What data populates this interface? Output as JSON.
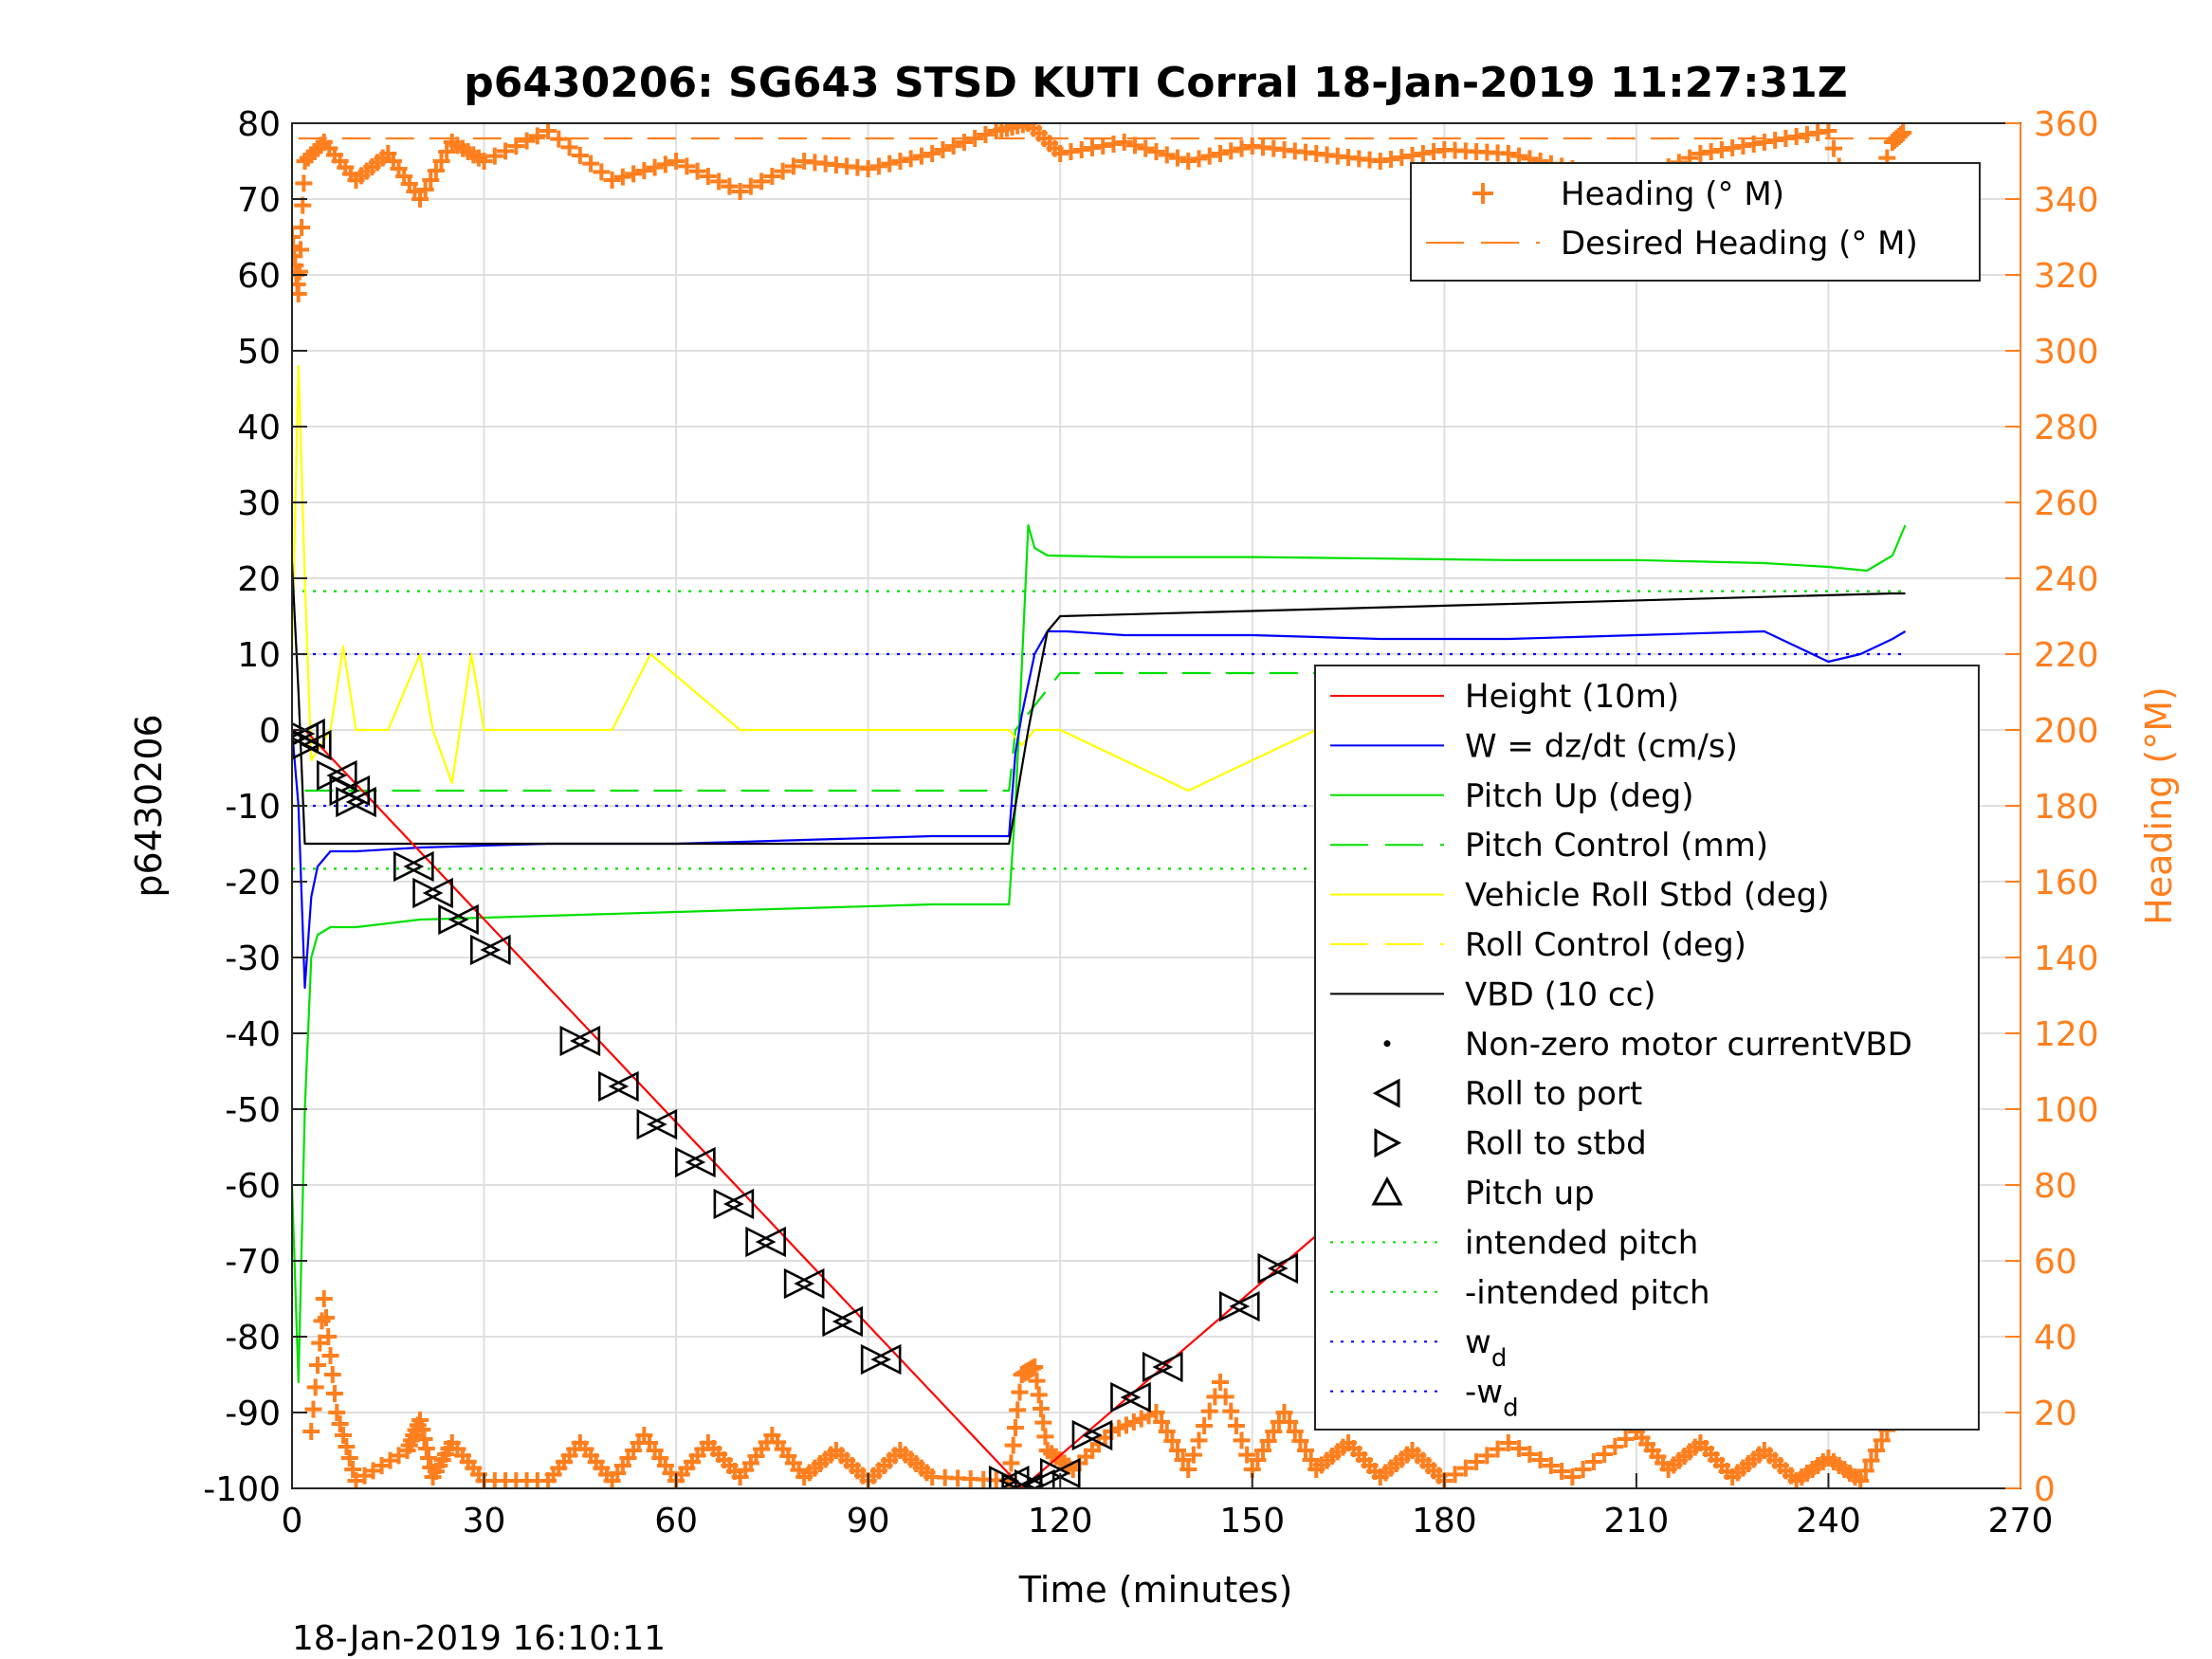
{
  "chart_data": {
    "type": "line",
    "title": "p6430206: SG643 STSD KUTI Corral 18-Jan-2019 11:27:31Z",
    "xlabel": "Time (minutes)",
    "ylabel": "p6430206",
    "ylabel_right": "Heading (°M)",
    "timestamp": "18-Jan-2019 16:10:11",
    "xlim": [
      0,
      270
    ],
    "ylim": [
      -100,
      80
    ],
    "ylim_right": [
      0,
      360
    ],
    "x_ticks": [
      "0",
      "30",
      "60",
      "90",
      "120",
      "150",
      "180",
      "210",
      "240",
      "270"
    ],
    "y_ticks": [
      "-100",
      "-90",
      "-80",
      "-70",
      "-60",
      "-50",
      "-40",
      "-30",
      "-20",
      "-10",
      "0",
      "10",
      "20",
      "30",
      "40",
      "50",
      "60",
      "70",
      "80"
    ],
    "y_ticks_right": [
      "0",
      "20",
      "40",
      "60",
      "80",
      "100",
      "120",
      "140",
      "160",
      "180",
      "200",
      "220",
      "240",
      "260",
      "280",
      "300",
      "320",
      "340",
      "360"
    ],
    "grid": true,
    "legend_top": {
      "placement": "top-right",
      "entries": [
        {
          "label": "Heading (° M)",
          "color": "#ff7f1e",
          "style": "plus"
        },
        {
          "label": "Desired Heading (° M)",
          "color": "#ff7f1e",
          "style": "dashed"
        }
      ]
    },
    "legend_main": {
      "placement": "right",
      "entries": [
        {
          "label": "Height (10m)",
          "color": "#ff0000",
          "style": "solid"
        },
        {
          "label": "W = dz/dt (cm/s)",
          "color": "#0000ff",
          "style": "solid"
        },
        {
          "label": "Pitch Up (deg)",
          "color": "#00e000",
          "style": "solid"
        },
        {
          "label": "Pitch Control (mm)",
          "color": "#00e000",
          "style": "dashed"
        },
        {
          "label": "Vehicle Roll Stbd (deg)",
          "color": "#ffff00",
          "style": "solid"
        },
        {
          "label": "Roll Control (deg)",
          "color": "#ffff00",
          "style": "dashed"
        },
        {
          "label": "VBD (10 cc)",
          "color": "#000000",
          "style": "solid"
        },
        {
          "label": "Non-zero motor currentVBD",
          "color": "#000000",
          "style": "dot"
        },
        {
          "label": "Roll to port",
          "color": "#000000",
          "style": "tri-left"
        },
        {
          "label": "Roll to stbd",
          "color": "#000000",
          "style": "tri-right"
        },
        {
          "label": "Pitch up",
          "color": "#000000",
          "style": "tri-up"
        },
        {
          "label": "intended pitch",
          "color": "#00e000",
          "style": "dotted"
        },
        {
          "label": "-intended pitch",
          "color": "#00e000",
          "style": "dotted"
        },
        {
          "label": "w",
          "sub": "d",
          "color": "#0000ff",
          "style": "dotted"
        },
        {
          "label": "-w",
          "sub": "d",
          "color": "#0000ff",
          "style": "dotted"
        }
      ]
    },
    "series": [
      {
        "name": "Height (10m)",
        "axis": "left",
        "color": "#ff0000",
        "x": [
          0,
          2,
          113,
          114,
          252
        ],
        "y": [
          0,
          0,
          -99,
          -100,
          0
        ]
      },
      {
        "name": "W = dz/dt (cm/s)",
        "axis": "left",
        "color": "#0000ff",
        "x": [
          0,
          1,
          2,
          3,
          4,
          6,
          10,
          20,
          40,
          60,
          80,
          100,
          112,
          113,
          114,
          116,
          118,
          121,
          130,
          150,
          170,
          190,
          210,
          230,
          235,
          240,
          245,
          250,
          252
        ],
        "y": [
          0,
          -10,
          -34,
          -22,
          -18,
          -16,
          -16,
          -15.5,
          -15,
          -15,
          -14.5,
          -14,
          -14,
          -3,
          2,
          10,
          13,
          13,
          12.5,
          12.5,
          12,
          12,
          12.5,
          13,
          11,
          9,
          10,
          12,
          13
        ]
      },
      {
        "name": "Pitch Up (deg)",
        "axis": "left",
        "color": "#00e000",
        "x": [
          0,
          1,
          2,
          3,
          4,
          6,
          10,
          20,
          40,
          60,
          80,
          100,
          112,
          113,
          115,
          116,
          118,
          130,
          150,
          170,
          190,
          210,
          230,
          240,
          246,
          250,
          252
        ],
        "y": [
          -60,
          -86,
          -50,
          -30,
          -27,
          -26,
          -26,
          -25,
          -24.5,
          -24,
          -23.5,
          -23,
          -23,
          -10,
          27,
          24,
          23,
          22.8,
          22.8,
          22.6,
          22.4,
          22.4,
          22,
          21.5,
          21,
          23,
          27
        ]
      },
      {
        "name": "Pitch Control (mm)",
        "axis": "left",
        "color": "#00e000",
        "dash": true,
        "x": [
          2,
          112,
          113,
          120,
          252
        ],
        "y": [
          -8,
          -8,
          0,
          7.5,
          7.5
        ]
      },
      {
        "name": "Vehicle Roll Stbd (deg)",
        "axis": "left",
        "color": "#ffff00",
        "x": [
          0,
          1,
          2,
          3,
          6,
          8,
          10,
          15,
          20,
          22,
          25,
          28,
          30,
          50,
          56,
          70,
          90,
          112,
          114,
          116,
          120,
          140,
          160,
          180,
          200,
          220,
          240,
          250,
          252
        ],
        "y": [
          10,
          48,
          20,
          -4,
          0,
          11,
          0,
          0,
          10,
          0,
          -7,
          10,
          0,
          0,
          10,
          0,
          0,
          0,
          -2,
          0,
          0,
          -8,
          0,
          0,
          0,
          0,
          0,
          -8,
          -14
        ]
      },
      {
        "name": "VBD (10 cc)",
        "axis": "left",
        "color": "#000000",
        "x": [
          0,
          1,
          2,
          100,
          112,
          113,
          114,
          115,
          118,
          120,
          250,
          252
        ],
        "y": [
          22,
          5,
          -15,
          -15,
          -15,
          -10,
          -5,
          0,
          13,
          15,
          18,
          18
        ]
      },
      {
        "name": "Heading (° M)",
        "axis": "right",
        "color": "#ff7f1e",
        "marker": "plus",
        "x": [
          0,
          1,
          2,
          5,
          10,
          15,
          20,
          25,
          30,
          40,
          50,
          60,
          70,
          80,
          90,
          100,
          110,
          115,
          120,
          130,
          140,
          150,
          160,
          170,
          180,
          190,
          200,
          210,
          220,
          230,
          240,
          245,
          250,
          252
        ],
        "y": [
          330,
          315,
          350,
          355,
          345,
          352,
          340,
          355,
          350,
          358,
          345,
          350,
          342,
          350,
          348,
          352,
          358,
          360,
          352,
          355,
          350,
          354,
          352,
          350,
          353,
          352,
          348,
          345,
          352,
          355,
          358,
          330,
          355,
          358
        ]
      },
      {
        "name": "Heading (° M) low",
        "axis": "right",
        "color": "#ff7f1e",
        "marker": "plus",
        "x": [
          3,
          5,
          7,
          10,
          18,
          20,
          22,
          25,
          30,
          40,
          45,
          50,
          55,
          60,
          65,
          70,
          75,
          80,
          85,
          90,
          95,
          100,
          112,
          114,
          116,
          118,
          122,
          128,
          135,
          140,
          145,
          150,
          155,
          160,
          165,
          170,
          175,
          180,
          190,
          200,
          210,
          215,
          220,
          225,
          230,
          235,
          240,
          245,
          250
        ],
        "y": [
          15,
          50,
          20,
          2,
          10,
          18,
          3,
          12,
          2,
          2,
          12,
          2,
          14,
          2,
          12,
          3,
          14,
          3,
          10,
          2,
          10,
          3,
          2,
          30,
          32,
          10,
          5,
          15,
          20,
          5,
          28,
          5,
          20,
          5,
          12,
          3,
          10,
          2,
          12,
          3,
          15,
          5,
          12,
          3,
          10,
          2,
          8,
          2,
          18
        ]
      },
      {
        "name": "Desired Heading (° M)",
        "axis": "right",
        "color": "#ff7f1e",
        "dash": true,
        "x": [
          1,
          252
        ],
        "y": [
          356,
          356
        ]
      },
      {
        "name": "intended pitch",
        "axis": "left",
        "color": "#00e000",
        "dotted": true,
        "x": [
          0,
          252
        ],
        "y": [
          18.3,
          18.3
        ]
      },
      {
        "name": "-intended pitch",
        "axis": "left",
        "color": "#00e000",
        "dotted": true,
        "x": [
          0,
          252
        ],
        "y": [
          -18.3,
          -18.3
        ]
      },
      {
        "name": "w_d",
        "axis": "left",
        "color": "#0000ff",
        "dotted": true,
        "x": [
          0,
          252
        ],
        "y": [
          10,
          10
        ]
      },
      {
        "name": "-w_d",
        "axis": "left",
        "color": "#0000ff",
        "dotted": true,
        "x": [
          0,
          252
        ],
        "y": [
          -10,
          -10
        ]
      }
    ],
    "roll_markers": {
      "x": [
        1,
        2,
        3,
        7,
        9,
        10,
        19,
        22,
        26,
        31,
        45,
        51,
        57,
        63,
        69,
        74,
        80,
        86,
        92,
        112,
        114,
        116,
        120,
        125,
        131,
        136,
        148,
        154,
        165,
        192,
        208,
        212,
        215,
        220,
        226,
        228,
        234,
        237,
        240,
        246,
        251,
        252
      ],
      "y": [
        -1,
        -0.5,
        -2,
        -6,
        -8,
        -9.5,
        -18,
        -21.5,
        -25,
        -29,
        -41,
        -47,
        -52,
        -57,
        -62.5,
        -67.5,
        -73,
        -78,
        -83,
        -99,
        -100,
        -99.5,
        -98,
        -93,
        -88,
        -84,
        -76,
        -71,
        -63,
        -42,
        -30,
        -28.5,
        -25,
        -24,
        -17,
        -15.5,
        -10.5,
        -9,
        -7.5,
        -3,
        -0.5,
        0
      ]
    }
  }
}
